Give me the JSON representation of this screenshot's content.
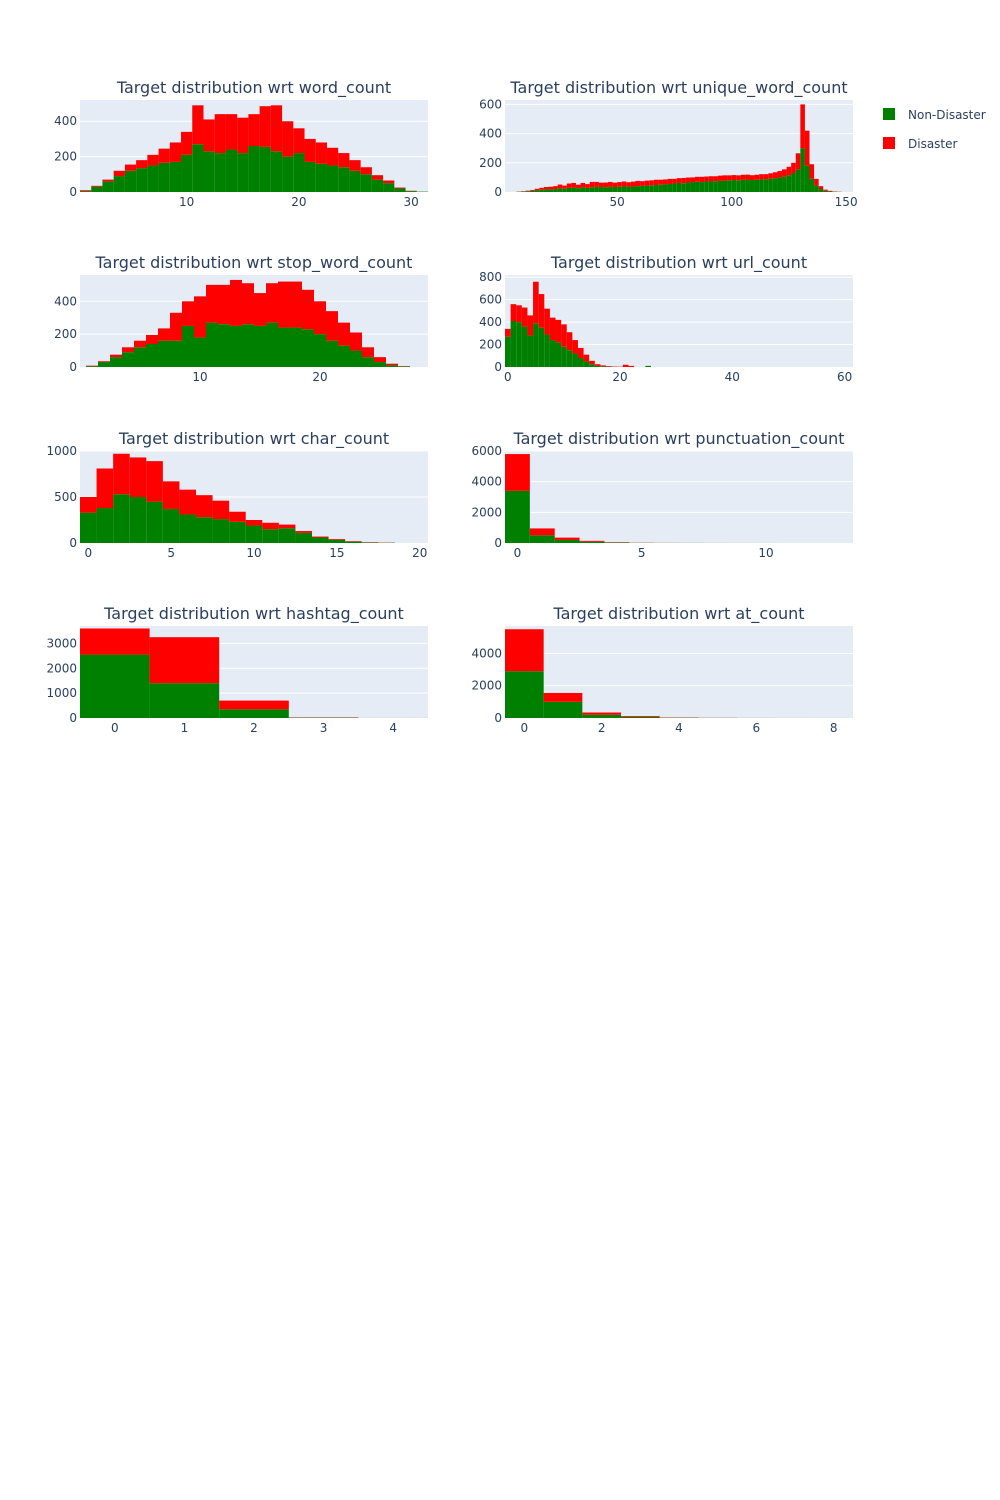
{
  "legend": {
    "placement": "top-right",
    "entries": [
      {
        "name": "Non-Disaster",
        "color": "#008000"
      },
      {
        "name": "Disaster",
        "color": "#ff0000"
      }
    ]
  },
  "style": {
    "plot_background": "#e5ecf6",
    "grid_color": "#ffffff",
    "text_color": "#2a3f5f"
  },
  "chart_data": [
    {
      "type": "bar",
      "title": "Target distribution wrt word_count",
      "stacked": true,
      "grid": true,
      "xlim": [
        0.5,
        31.5
      ],
      "ylim": [
        0,
        520
      ],
      "xticks": [
        10,
        20,
        30
      ],
      "yticks": [
        0,
        200,
        400
      ],
      "x": [
        1,
        2,
        3,
        4,
        5,
        6,
        7,
        8,
        9,
        10,
        11,
        12,
        13,
        14,
        15,
        16,
        17,
        18,
        19,
        20,
        21,
        22,
        23,
        24,
        25,
        26,
        27,
        28,
        29,
        30,
        31
      ],
      "series": [
        {
          "name": "Non-Disaster",
          "color": "#008000",
          "values": [
            5,
            30,
            60,
            90,
            120,
            135,
            150,
            165,
            170,
            210,
            270,
            230,
            220,
            240,
            220,
            260,
            255,
            230,
            200,
            220,
            170,
            160,
            150,
            140,
            120,
            100,
            70,
            50,
            20,
            5,
            2
          ]
        },
        {
          "name": "Disaster",
          "color": "#ff0000",
          "values": [
            5,
            5,
            10,
            30,
            35,
            45,
            60,
            80,
            110,
            130,
            220,
            180,
            220,
            200,
            200,
            180,
            230,
            260,
            200,
            140,
            130,
            120,
            100,
            80,
            60,
            40,
            25,
            15,
            5,
            2,
            0
          ]
        }
      ]
    },
    {
      "type": "bar",
      "title": "Target distribution wrt unique_word_count",
      "stacked": true,
      "grid": true,
      "xlim": [
        1,
        153
      ],
      "ylim": [
        0,
        630
      ],
      "xticks": [
        50,
        100,
        150
      ],
      "yticks": [
        0,
        200,
        400,
        600
      ],
      "x": [
        7,
        9,
        11,
        13,
        15,
        17,
        19,
        21,
        23,
        25,
        27,
        29,
        31,
        33,
        35,
        37,
        39,
        41,
        43,
        45,
        47,
        49,
        51,
        53,
        55,
        57,
        59,
        61,
        63,
        65,
        67,
        69,
        71,
        73,
        75,
        77,
        79,
        81,
        83,
        85,
        87,
        89,
        91,
        93,
        95,
        97,
        99,
        101,
        103,
        105,
        107,
        109,
        111,
        113,
        115,
        117,
        119,
        121,
        123,
        125,
        127,
        129,
        131,
        133,
        135,
        137,
        139,
        141,
        143,
        145,
        147
      ],
      "series": [
        {
          "name": "Non-Disaster",
          "color": "#008000",
          "values": [
            2,
            3,
            5,
            8,
            12,
            15,
            18,
            18,
            20,
            25,
            22,
            28,
            30,
            26,
            32,
            28,
            33,
            35,
            34,
            33,
            35,
            34,
            36,
            38,
            37,
            38,
            40,
            42,
            44,
            46,
            48,
            50,
            52,
            55,
            58,
            62,
            60,
            65,
            68,
            70,
            68,
            72,
            75,
            74,
            76,
            78,
            80,
            82,
            80,
            83,
            85,
            82,
            84,
            86,
            88,
            90,
            95,
            100,
            105,
            115,
            130,
            155,
            300,
            180,
            90,
            45,
            20,
            8,
            4,
            2,
            1
          ]
        },
        {
          "name": "Disaster",
          "color": "#ff0000",
          "values": [
            1,
            2,
            4,
            6,
            10,
            14,
            16,
            18,
            20,
            26,
            22,
            30,
            32,
            24,
            30,
            26,
            36,
            34,
            30,
            32,
            34,
            30,
            32,
            34,
            30,
            33,
            36,
            32,
            34,
            34,
            36,
            34,
            34,
            35,
            32,
            33,
            36,
            34,
            32,
            34,
            36,
            34,
            33,
            34,
            36,
            36,
            34,
            34,
            34,
            35,
            34,
            33,
            34,
            36,
            34,
            38,
            40,
            44,
            50,
            58,
            70,
            110,
            300,
            240,
            100,
            45,
            20,
            8,
            4,
            2,
            1
          ]
        }
      ]
    },
    {
      "type": "bar",
      "title": "Target distribution wrt stop_word_count",
      "stacked": true,
      "grid": true,
      "xlim": [
        0,
        29
      ],
      "ylim": [
        0,
        560
      ],
      "xticks": [
        10,
        20
      ],
      "yticks": [
        0,
        200,
        400
      ],
      "x": [
        1,
        2,
        3,
        4,
        5,
        6,
        7,
        8,
        9,
        10,
        11,
        12,
        13,
        14,
        15,
        16,
        17,
        18,
        19,
        20,
        21,
        22,
        23,
        24,
        25,
        26,
        27
      ],
      "series": [
        {
          "name": "Non-Disaster",
          "color": "#008000",
          "values": [
            5,
            30,
            60,
            90,
            120,
            140,
            160,
            160,
            250,
            180,
            270,
            260,
            250,
            260,
            250,
            270,
            240,
            240,
            230,
            200,
            160,
            130,
            100,
            60,
            30,
            10,
            3
          ]
        },
        {
          "name": "Disaster",
          "color": "#ff0000",
          "values": [
            3,
            5,
            15,
            30,
            40,
            55,
            75,
            170,
            150,
            250,
            230,
            240,
            280,
            250,
            200,
            240,
            280,
            280,
            240,
            200,
            180,
            140,
            110,
            60,
            30,
            10,
            2
          ]
        }
      ]
    },
    {
      "type": "bar",
      "title": "Target distribution wrt url_count",
      "stacked": true,
      "grid": true,
      "xlim": [
        -0.5,
        61.5
      ],
      "ylim": [
        0,
        820
      ],
      "xticks": [
        0,
        20,
        40,
        60
      ],
      "yticks": [
        0,
        200,
        400,
        600,
        800
      ],
      "x": [
        0,
        1,
        2,
        3,
        4,
        5,
        6,
        7,
        8,
        9,
        10,
        11,
        12,
        13,
        14,
        15,
        16,
        17,
        18,
        19,
        20,
        21,
        22,
        23,
        24,
        25
      ],
      "series": [
        {
          "name": "Non-Disaster",
          "color": "#008000",
          "values": [
            270,
            410,
            400,
            360,
            280,
            390,
            350,
            290,
            240,
            220,
            180,
            150,
            120,
            80,
            50,
            25,
            10,
            6,
            3,
            2,
            1,
            0,
            0,
            0,
            0,
            10
          ]
        },
        {
          "name": "Disaster",
          "color": "#ff0000",
          "values": [
            70,
            150,
            150,
            170,
            180,
            370,
            300,
            230,
            200,
            200,
            200,
            160,
            120,
            90,
            60,
            30,
            15,
            8,
            5,
            3,
            2,
            20,
            10,
            0,
            0,
            0
          ]
        }
      ]
    },
    {
      "type": "bar",
      "title": "Target distribution wrt char_count",
      "stacked": true,
      "grid": true,
      "xlim": [
        -0.5,
        20.5
      ],
      "ylim": [
        0,
        1000
      ],
      "xticks": [
        0,
        5,
        10,
        15,
        20
      ],
      "yticks": [
        0,
        500,
        1000
      ],
      "x": [
        0,
        1,
        2,
        3,
        4,
        5,
        6,
        7,
        8,
        9,
        10,
        11,
        12,
        13,
        14,
        15,
        16,
        17,
        18
      ],
      "series": [
        {
          "name": "Non-Disaster",
          "color": "#008000",
          "values": [
            330,
            380,
            530,
            500,
            450,
            370,
            310,
            280,
            260,
            230,
            190,
            150,
            160,
            110,
            60,
            35,
            15,
            5,
            3
          ]
        },
        {
          "name": "Disaster",
          "color": "#ff0000",
          "values": [
            170,
            430,
            440,
            430,
            440,
            300,
            270,
            240,
            200,
            110,
            60,
            70,
            40,
            20,
            10,
            8,
            5,
            3,
            2
          ]
        }
      ]
    },
    {
      "type": "bar",
      "title": "Target distribution wrt punctuation_count",
      "stacked": true,
      "grid": true,
      "xlim": [
        -0.5,
        13.5
      ],
      "ylim": [
        0,
        6000
      ],
      "xticks": [
        0,
        5,
        10
      ],
      "yticks": [
        0,
        2000,
        4000,
        6000
      ],
      "x": [
        0,
        1,
        2,
        3,
        4,
        5,
        6,
        7,
        8,
        9,
        10,
        11,
        12,
        13
      ],
      "series": [
        {
          "name": "Non-Disaster",
          "color": "#008000",
          "values": [
            3400,
            500,
            200,
            80,
            30,
            12,
            6,
            4,
            2,
            1,
            1,
            0,
            0,
            0
          ]
        },
        {
          "name": "Disaster",
          "color": "#ff0000",
          "values": [
            2400,
            450,
            150,
            60,
            20,
            8,
            4,
            2,
            1,
            1,
            0,
            0,
            0,
            0
          ]
        }
      ]
    },
    {
      "type": "bar",
      "title": "Target distribution wrt hashtag_count",
      "stacked": true,
      "grid": true,
      "xlim": [
        -0.5,
        4.5
      ],
      "ylim": [
        0,
        3700
      ],
      "xticks": [
        0,
        1,
        2,
        3,
        4
      ],
      "yticks": [
        0,
        1000,
        2000,
        3000
      ],
      "x": [
        0,
        1,
        2,
        3,
        4
      ],
      "series": [
        {
          "name": "Non-Disaster",
          "color": "#008000",
          "values": [
            2550,
            1400,
            350,
            15,
            1
          ]
        },
        {
          "name": "Disaster",
          "color": "#ff0000",
          "values": [
            1050,
            1850,
            350,
            10,
            1
          ]
        }
      ]
    },
    {
      "type": "bar",
      "title": "Target distribution wrt at_count",
      "stacked": true,
      "grid": true,
      "xlim": [
        -0.5,
        8.5
      ],
      "ylim": [
        0,
        5700
      ],
      "xticks": [
        0,
        2,
        4,
        6,
        8
      ],
      "yticks": [
        0,
        2000,
        4000
      ],
      "x": [
        0,
        1,
        2,
        3,
        4,
        5,
        6,
        7,
        8
      ],
      "series": [
        {
          "name": "Non-Disaster",
          "color": "#008000",
          "values": [
            2900,
            1000,
            200,
            70,
            20,
            8,
            3,
            1,
            1
          ]
        },
        {
          "name": "Disaster",
          "color": "#ff0000",
          "values": [
            2600,
            550,
            140,
            50,
            15,
            6,
            2,
            1,
            0
          ]
        }
      ]
    }
  ]
}
